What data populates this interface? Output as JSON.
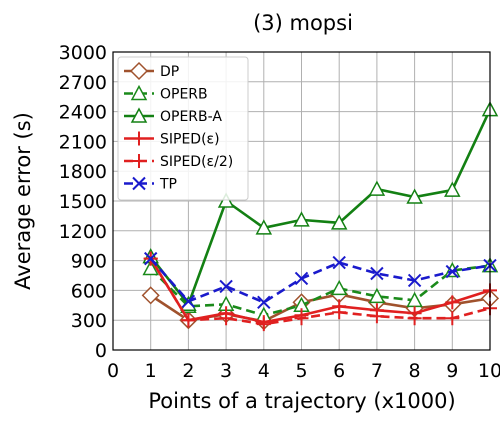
{
  "chart_data": {
    "type": "line",
    "title": "(3) mopsi",
    "xlabel": "Points of a trajectory (x1000)",
    "ylabel": "Average error (s)",
    "xlim": [
      0,
      10
    ],
    "ylim": [
      0,
      3000
    ],
    "xticks": [
      0,
      1,
      2,
      3,
      4,
      5,
      6,
      7,
      8,
      9,
      10
    ],
    "yticks": [
      0,
      300,
      600,
      900,
      1200,
      1500,
      1800,
      2100,
      2400,
      2700,
      3000
    ],
    "grid": true,
    "legend_position": "top-left",
    "x": [
      1,
      2,
      3,
      4,
      5,
      6,
      7,
      8,
      9,
      10
    ],
    "series": [
      {
        "name": "DP",
        "color": "#a0522d",
        "dash": "solid",
        "marker": "diamond-open",
        "values": [
          550,
          300,
          360,
          290,
          480,
          560,
          480,
          420,
          460,
          520
        ]
      },
      {
        "name": "OPERB",
        "color": "#1a8a1a",
        "dash": "dashed",
        "marker": "triangle-open",
        "values": [
          820,
          440,
          460,
          350,
          450,
          620,
          540,
          500,
          800,
          850
        ]
      },
      {
        "name": "OPERB-A",
        "color": "#138013",
        "dash": "solid",
        "marker": "triangle-open",
        "values": [
          940,
          460,
          1500,
          1230,
          1310,
          1280,
          1620,
          1540,
          1610,
          2420
        ]
      },
      {
        "name": "SIPED(ε)",
        "color": "#e02020",
        "dash": "solid",
        "marker": "plus",
        "values": [
          920,
          300,
          370,
          280,
          350,
          440,
          400,
          370,
          480,
          600
        ]
      },
      {
        "name": "SIPED(ε/2)",
        "color": "#e02020",
        "dash": "dashed",
        "marker": "plus",
        "values": [
          920,
          300,
          320,
          260,
          320,
          380,
          340,
          320,
          320,
          420
        ]
      },
      {
        "name": "TP",
        "color": "#1a1acc",
        "dash": "dashed",
        "marker": "x",
        "values": [
          920,
          490,
          640,
          480,
          720,
          880,
          770,
          700,
          790,
          850
        ]
      }
    ]
  }
}
